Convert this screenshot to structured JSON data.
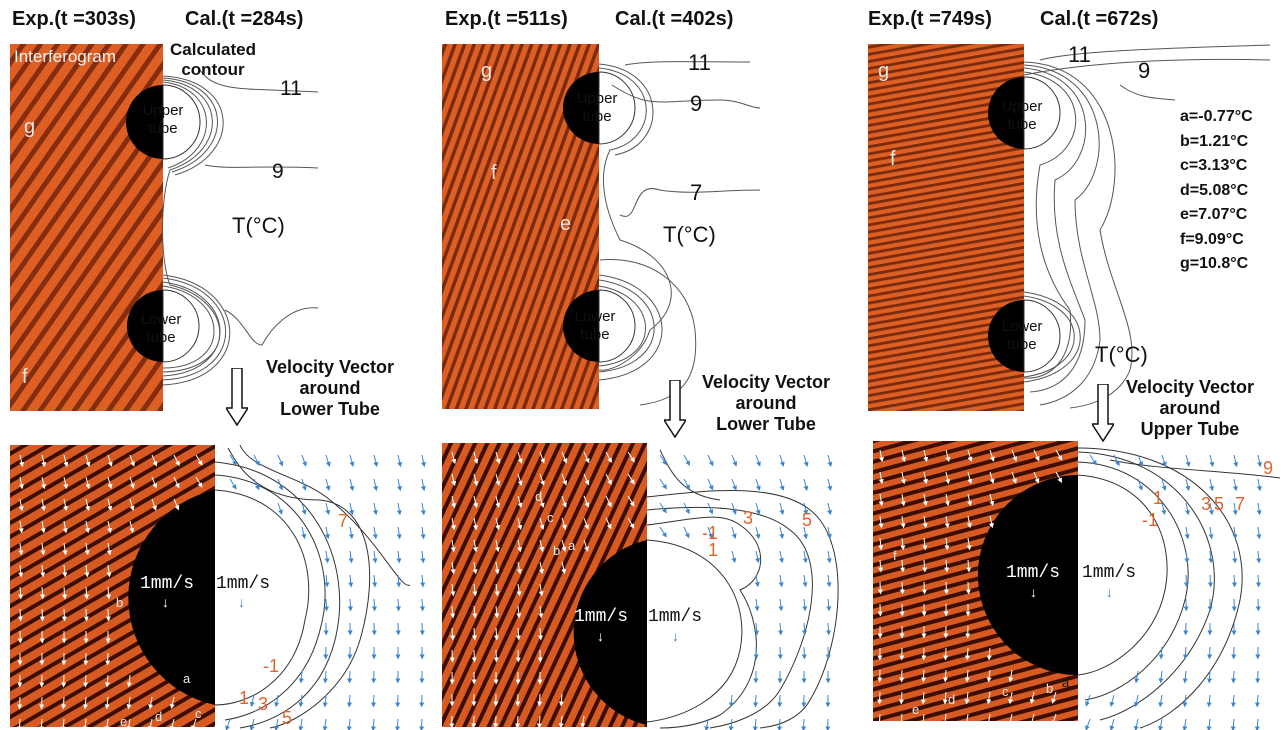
{
  "panel1": {
    "exp_label": "Exp.(t =303s)",
    "cal_label": "Cal.(t =284s)",
    "interferogram_label": "Interferogram",
    "calculated_contour_label": "Calculated\ncontour",
    "upper_tube": "Upper\ntube",
    "lower_tube": "Lower\ntube",
    "fringe_g": "g",
    "fringe_f": "f",
    "contour_11": "11",
    "contour_9": "9",
    "temp_unit": "T(°C)",
    "velocity_title": "Velocity Vector\naround\nLower Tube",
    "speed_exp": "1mm/s",
    "speed_cal": "1mm/s",
    "zoom_fringes": [
      "b",
      "a",
      "c",
      "d",
      "e"
    ],
    "zoom_contours": [
      "7",
      "-1",
      "1",
      "3",
      "5"
    ]
  },
  "panel2": {
    "exp_label": "Exp.(t =511s)",
    "cal_label": "Cal.(t =402s)",
    "upper_tube": "Upper\ntube",
    "lower_tube": "Lower\ntube",
    "fringe_g": "g",
    "fringe_f": "f",
    "fringe_e": "e",
    "contour_11": "11",
    "contour_9": "9",
    "contour_7": "7",
    "temp_unit": "T(°C)",
    "velocity_title": "Velocity Vector\naround\nLower Tube",
    "speed_exp": "1mm/s",
    "speed_cal": "1mm/s",
    "zoom_fringes": [
      "d",
      "c",
      "b",
      "a"
    ],
    "zoom_contours": [
      "-1",
      "1",
      "3",
      "5"
    ]
  },
  "panel3": {
    "exp_label": "Exp.(t =749s)",
    "cal_label": "Cal.(t =672s)",
    "upper_tube": "Upper\ntube",
    "lower_tube": "Lower\ntube",
    "fringe_g": "g",
    "fringe_f": "f",
    "contour_11": "11",
    "contour_9": "9",
    "temp_unit": "T(°C)",
    "velocity_title": "Velocity Vector\naround\nUpper Tube",
    "speed_exp": "1mm/s",
    "speed_cal": "1mm/s",
    "zoom_fringes": [
      "f",
      "e",
      "d",
      "c",
      "b",
      "a"
    ],
    "zoom_contours": [
      "9",
      "-1",
      "1",
      "3",
      "5",
      "7"
    ]
  },
  "legend": [
    "a=-0.77°C",
    "b=1.21°C",
    "c=3.13°C",
    "d=5.08°C",
    "e=7.07°C",
    "f=9.09°C",
    "g=10.8°C"
  ],
  "colors": {
    "interferogram": "#d65a22",
    "fringe_dark": "#6a1e08",
    "vector_blue": "#3a86d6",
    "contour_orange": "#e0642c"
  }
}
